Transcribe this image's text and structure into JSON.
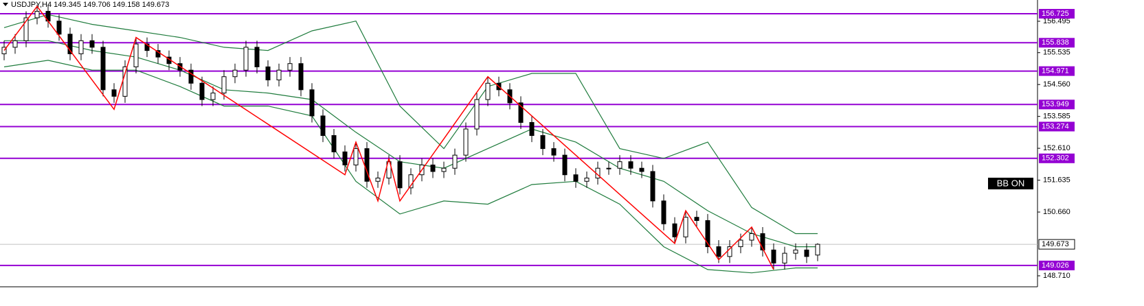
{
  "chart_data": {
    "type": "candlestick",
    "header": "USDJPY,H4  149.345 149.706 149.158 149.673",
    "indicator_label": "BB ON",
    "ylim": [
      148.374,
      157.145
    ],
    "xlim": [
      -0.375,
      94
    ],
    "yticks": [
      156.495,
      155.535,
      {
        "value": 154.56,
        "label": "154.560"
      },
      153.585,
      {
        "value": 152.61,
        "label": "152.610"
      },
      151.635,
      {
        "value": 150.66,
        "label": "150.660"
      },
      {
        "value": 148.71,
        "label": "148.710"
      }
    ],
    "levels": [
      156.725,
      155.838,
      154.971,
      153.949,
      153.274,
      152.302,
      149.026
    ],
    "level_color": "#9400d3",
    "current_price": 149.673,
    "up_color": "#ffffff",
    "down_color": "#000000",
    "open": [
      155.5,
      155.7,
      155.9,
      156.6,
      156.8,
      156.5,
      156.1,
      155.5,
      155.9,
      155.7,
      154.4,
      154.2,
      155.1,
      155.8,
      155.6,
      155.4,
      155.2,
      155.0,
      154.6,
      154.1,
      154.3,
      154.8,
      155.0,
      155.7,
      155.1,
      154.7,
      155.0,
      155.2,
      154.4,
      153.6,
      153.0,
      152.5,
      152.1,
      152.6,
      151.6,
      151.7,
      152.2,
      151.4,
      151.8,
      152.1,
      151.9,
      152.0,
      152.4,
      153.2,
      154.1,
      154.6,
      154.4,
      154.0,
      153.4,
      153.0,
      152.6,
      152.4,
      151.8,
      151.6,
      151.7,
      152.0,
      152.0,
      152.2,
      152.0,
      151.9,
      151.0,
      150.3,
      149.9,
      150.5,
      150.4,
      149.6,
      149.3,
      149.6,
      149.8,
      150.0,
      149.5,
      149.1,
      149.4,
      149.5,
      149.345
    ],
    "high": [
      155.9,
      156.1,
      156.8,
      157.0,
      157.0,
      156.7,
      156.3,
      156.1,
      156.1,
      155.9,
      154.6,
      155.3,
      156.0,
      156.0,
      155.8,
      155.6,
      155.4,
      155.2,
      154.8,
      154.5,
      155.0,
      155.2,
      155.9,
      155.9,
      155.3,
      155.2,
      155.4,
      155.4,
      154.6,
      153.8,
      153.2,
      152.7,
      152.8,
      152.8,
      151.9,
      152.4,
      152.4,
      152.0,
      152.3,
      152.3,
      152.2,
      152.6,
      153.4,
      154.3,
      154.8,
      154.8,
      154.6,
      154.2,
      153.6,
      153.2,
      152.8,
      152.6,
      152.0,
      151.9,
      152.2,
      152.2,
      152.4,
      152.4,
      152.2,
      152.1,
      151.2,
      150.5,
      150.7,
      150.7,
      150.6,
      149.8,
      149.8,
      150.0,
      150.2,
      150.2,
      149.7,
      149.6,
      149.7,
      149.7,
      149.706
    ],
    "low": [
      155.3,
      155.5,
      155.7,
      156.4,
      156.3,
      155.9,
      155.3,
      155.3,
      155.5,
      154.2,
      154.0,
      154.0,
      154.9,
      155.4,
      155.2,
      155.0,
      154.8,
      154.4,
      153.9,
      153.9,
      154.1,
      154.6,
      154.8,
      154.9,
      154.5,
      154.5,
      154.8,
      154.2,
      153.4,
      152.8,
      152.3,
      151.9,
      151.9,
      151.4,
      151.4,
      151.5,
      151.2,
      151.2,
      151.6,
      151.7,
      151.7,
      151.8,
      152.2,
      153.0,
      153.9,
      154.2,
      153.8,
      153.2,
      152.8,
      152.4,
      152.2,
      151.6,
      151.4,
      151.4,
      151.5,
      151.8,
      151.8,
      151.8,
      151.7,
      150.8,
      150.1,
      149.7,
      149.7,
      150.2,
      149.4,
      149.1,
      149.1,
      149.4,
      149.6,
      149.3,
      148.9,
      148.9,
      149.2,
      149.1,
      149.158
    ],
    "close": [
      155.7,
      155.9,
      156.6,
      156.8,
      156.5,
      156.1,
      155.5,
      155.9,
      155.7,
      154.4,
      154.2,
      155.1,
      155.8,
      155.6,
      155.4,
      155.2,
      155.0,
      154.6,
      154.1,
      154.3,
      154.8,
      155.0,
      155.7,
      155.1,
      154.7,
      155.0,
      155.2,
      154.4,
      153.6,
      153.0,
      152.5,
      152.1,
      152.6,
      151.6,
      151.7,
      152.2,
      151.4,
      151.8,
      152.1,
      151.9,
      152.0,
      152.4,
      153.2,
      154.1,
      154.6,
      154.4,
      154.0,
      153.4,
      153.0,
      152.6,
      152.4,
      151.8,
      151.6,
      151.7,
      152.0,
      152.0,
      152.2,
      152.0,
      151.9,
      151.0,
      150.3,
      149.9,
      150.5,
      150.4,
      149.6,
      149.3,
      149.6,
      149.8,
      150.0,
      149.5,
      149.1,
      149.4,
      149.5,
      149.3,
      149.673
    ],
    "bands": {
      "color": "#1e7b3c",
      "x": [
        0,
        4,
        8,
        12,
        16,
        20,
        24,
        28,
        32,
        36,
        40,
        44,
        48,
        52,
        56,
        60,
        64,
        68,
        72,
        74
      ],
      "upper": [
        156.3,
        156.7,
        156.4,
        156.2,
        156.0,
        155.7,
        155.6,
        156.2,
        156.5,
        153.9,
        152.6,
        154.5,
        154.9,
        154.9,
        152.6,
        152.3,
        152.8,
        150.8,
        150.0,
        150.0
      ],
      "middle": [
        155.9,
        155.9,
        155.6,
        155.4,
        155.0,
        154.4,
        154.3,
        154.1,
        153.1,
        152.2,
        152.0,
        152.6,
        153.2,
        152.8,
        152.0,
        151.6,
        150.7,
        150.0,
        149.6,
        149.6
      ],
      "lower": [
        155.1,
        155.3,
        155.0,
        155.0,
        154.5,
        153.9,
        153.9,
        153.6,
        151.6,
        150.6,
        151.0,
        150.9,
        151.5,
        151.6,
        150.9,
        149.6,
        148.9,
        148.8,
        148.95,
        148.95
      ]
    },
    "zigzag": {
      "color": "#ff0000",
      "x": [
        0,
        3,
        10,
        12,
        31,
        32,
        34,
        35,
        36,
        44,
        61,
        62,
        65,
        68,
        70
      ],
      "values": [
        155.6,
        156.95,
        153.8,
        156.0,
        151.8,
        152.8,
        151.0,
        152.3,
        151.0,
        154.8,
        149.7,
        150.7,
        149.2,
        150.2,
        148.9
      ]
    }
  }
}
